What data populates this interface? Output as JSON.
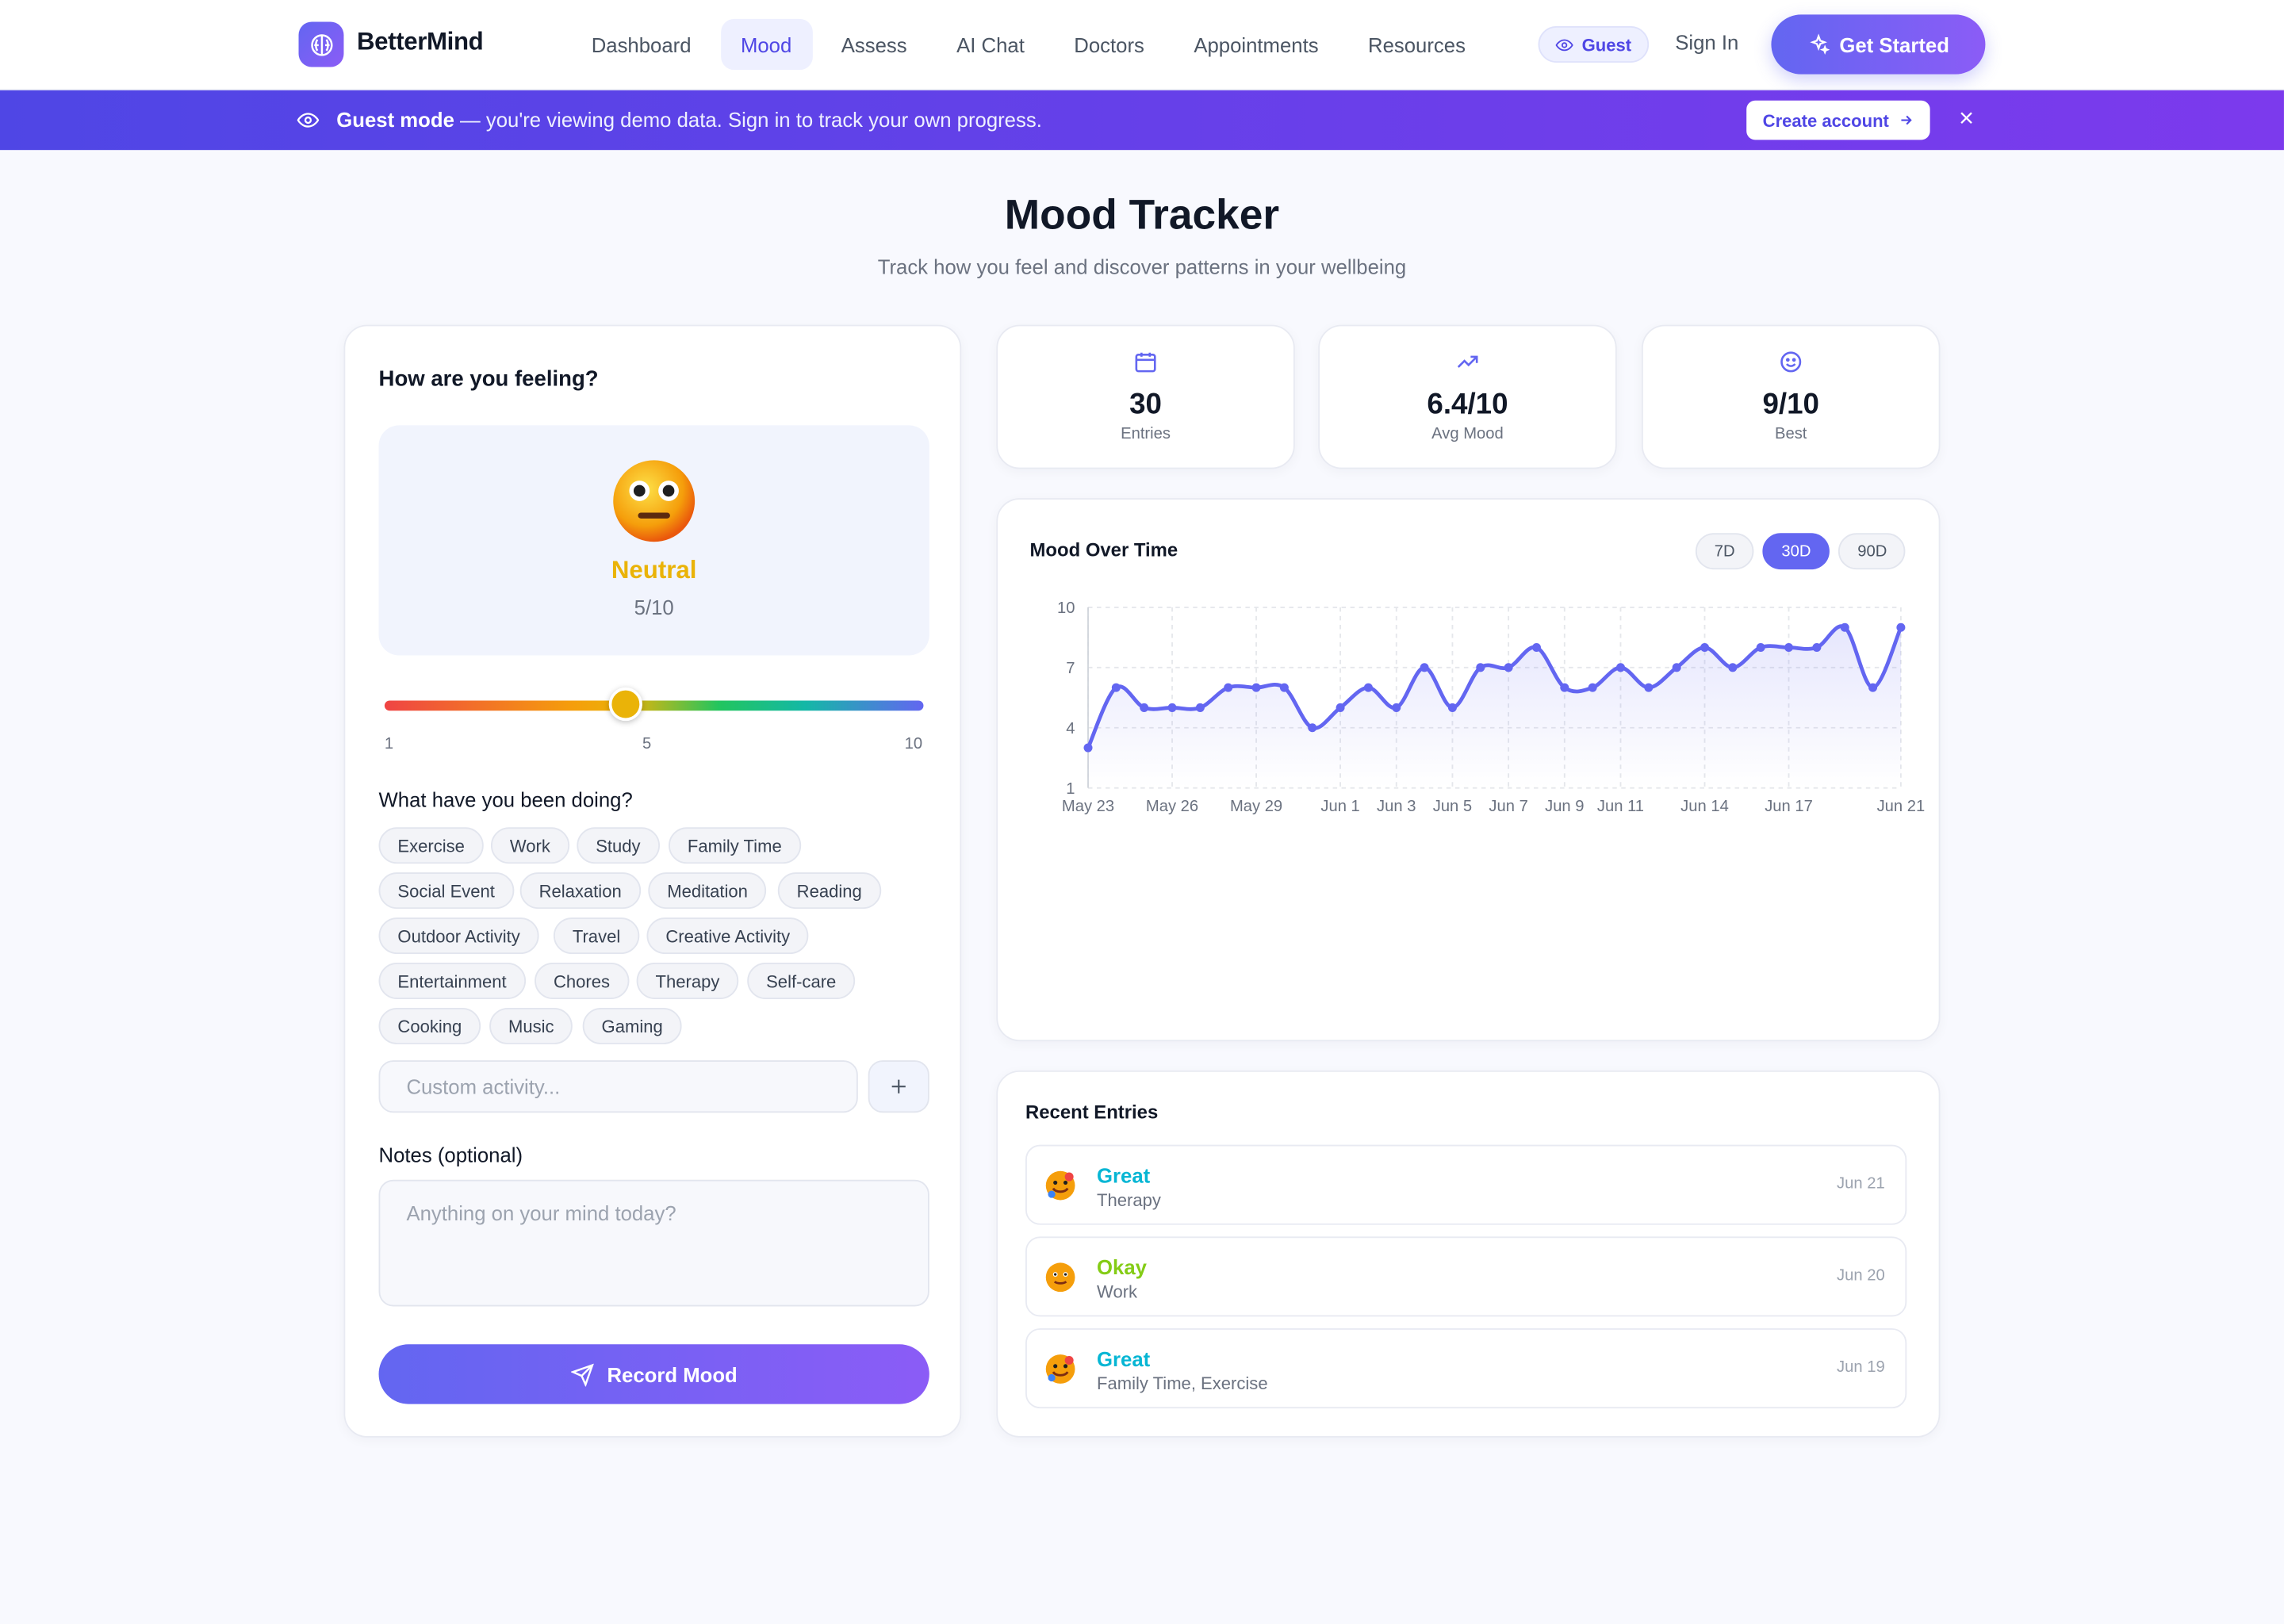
{
  "app": {
    "name": "BetterMind"
  },
  "nav": {
    "links": [
      "Dashboard",
      "Mood",
      "Assess",
      "AI Chat",
      "Doctors",
      "Appointments",
      "Resources"
    ],
    "active": "Mood",
    "guest_label": "Guest",
    "signin_label": "Sign In",
    "get_started_label": "Get Started"
  },
  "banner": {
    "bold": "Guest mode",
    "text": " — you're viewing demo data. Sign in to track your own progress.",
    "cta": "Create account"
  },
  "page": {
    "title": "Mood Tracker",
    "subtitle": "Track how you feel and discover patterns in your wellbeing"
  },
  "form": {
    "title": "How are you feeling?",
    "mood_label": "Neutral",
    "mood_score": "5/10",
    "mood_value": 5,
    "slider_min": "1",
    "slider_mid": "5",
    "slider_max": "10",
    "activities_title": "What have you been doing?",
    "activities": [
      "Exercise",
      "Work",
      "Study",
      "Family Time",
      "Social Event",
      "Relaxation",
      "Meditation",
      "Reading",
      "Outdoor Activity",
      "Travel",
      "Creative Activity",
      "Entertainment",
      "Chores",
      "Therapy",
      "Self-care",
      "Cooking",
      "Music",
      "Gaming"
    ],
    "custom_placeholder": "Custom activity...",
    "notes_label": "Notes (optional)",
    "notes_placeholder": "Anything on your mind today?",
    "submit_label": "Record Mood"
  },
  "stats": [
    {
      "icon": "calendar-icon",
      "value": "30",
      "label": "Entries"
    },
    {
      "icon": "trending-up-icon",
      "value": "6.4/10",
      "label": "Avg Mood"
    },
    {
      "icon": "smile-icon",
      "value": "9/10",
      "label": "Best"
    }
  ],
  "chart": {
    "title": "Mood Over Time",
    "ranges": [
      "7D",
      "30D",
      "90D"
    ],
    "active_range": "30D"
  },
  "chart_data": {
    "type": "line",
    "title": "Mood Over Time",
    "y_ticks": [
      10,
      7,
      4,
      1
    ],
    "ylim": [
      1,
      10
    ],
    "x_tick_labels": [
      "May 23",
      "May 26",
      "May 29",
      "Jun 1",
      "Jun 3",
      "Jun 5",
      "Jun 7",
      "Jun 9",
      "Jun 11",
      "Jun 14",
      "Jun 17",
      "Jun 21"
    ],
    "series": [
      {
        "x": [
          "May 23",
          "May 24",
          "May 25",
          "May 26",
          "May 27",
          "May 28",
          "May 29",
          "May 30",
          "May 31",
          "Jun 1",
          "Jun 2",
          "Jun 3",
          "Jun 4",
          "Jun 5",
          "Jun 6",
          "Jun 7",
          "Jun 8",
          "Jun 9",
          "Jun 10",
          "Jun 11",
          "Jun 12",
          "Jun 13",
          "Jun 14",
          "Jun 15",
          "Jun 16",
          "Jun 17",
          "Jun 18",
          "Jun 19",
          "Jun 20",
          "Jun 21"
        ],
        "values": [
          3,
          6,
          5,
          5,
          5,
          6,
          6,
          6,
          4,
          5,
          6,
          5,
          7,
          5,
          7,
          7,
          8,
          6,
          6,
          7,
          6,
          7,
          8,
          7,
          8,
          8,
          8,
          9,
          6,
          9
        ]
      }
    ],
    "grid": true,
    "color": "#6366f1"
  },
  "recent": {
    "title": "Recent Entries",
    "entries": [
      {
        "label": "Great",
        "activities": "Therapy",
        "date": "Jun 21",
        "color": "#06b6d4"
      },
      {
        "label": "Okay",
        "activities": "Work",
        "date": "Jun 20",
        "color": "#84cc16"
      },
      {
        "label": "Great",
        "activities": "Family Time, Exercise",
        "date": "Jun 19",
        "color": "#06b6d4"
      }
    ]
  }
}
